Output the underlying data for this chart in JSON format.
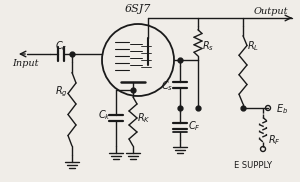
{
  "bg_color": "#f0ede8",
  "line_color": "#1a1a1a",
  "figsize": [
    3.0,
    1.82
  ],
  "dpi": 100,
  "tube_label": "6SJ7",
  "output_label": "Output",
  "input_label": "Input",
  "esupply_label": "E SUPPLY",
  "Cc_label": "C_c",
  "Rg_label": "R_g",
  "Ck_label": "C_k",
  "RK_label": "R_K",
  "Cs_label": "C_s",
  "Rs_label": "R_s",
  "CF_label": "C_F",
  "RL_label": "R_L",
  "Eb_label": "E_b",
  "RF_label": "R_F"
}
